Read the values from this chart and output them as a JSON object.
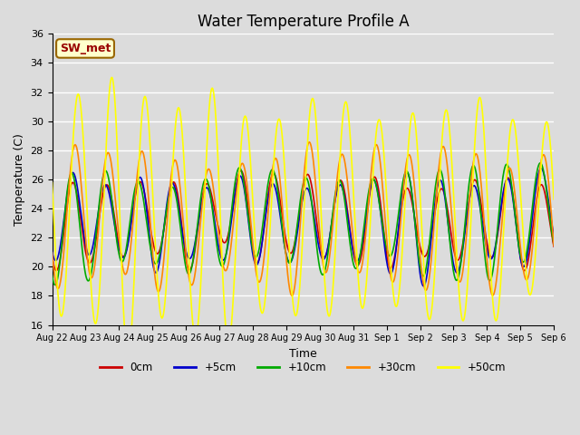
{
  "title": "Water Temperature Profile A",
  "xlabel": "Time",
  "ylabel": "Temperature (C)",
  "ylim": [
    16,
    36
  ],
  "yticks": [
    16,
    18,
    20,
    22,
    24,
    26,
    28,
    30,
    32,
    34,
    36
  ],
  "x_tick_labels": [
    "Aug 22",
    "Aug 23",
    "Aug 24",
    "Aug 25",
    "Aug 26",
    "Aug 27",
    "Aug 28",
    "Aug 29",
    "Aug 30",
    "Aug 31",
    "Sep 1",
    "Sep 2",
    "Sep 3",
    "Sep 4",
    "Sep 5",
    "Sep 6"
  ],
  "legend_labels": [
    "0cm",
    "+5cm",
    "+10cm",
    "+30cm",
    "+50cm"
  ],
  "legend_colors": [
    "#cc0000",
    "#0000cc",
    "#00aa00",
    "#ff8800",
    "#ffff00"
  ],
  "line_widths": [
    1.2,
    1.2,
    1.2,
    1.2,
    1.2
  ],
  "annotation_text": "SW_met",
  "annotation_color": "#990000",
  "annotation_bg": "#ffffcc",
  "annotation_border": "#996600",
  "plot_bg": "#dcdcdc",
  "fig_bg": "#dcdcdc",
  "grid_color": "white",
  "title_fontsize": 12,
  "num_days": 15,
  "spd": 144
}
